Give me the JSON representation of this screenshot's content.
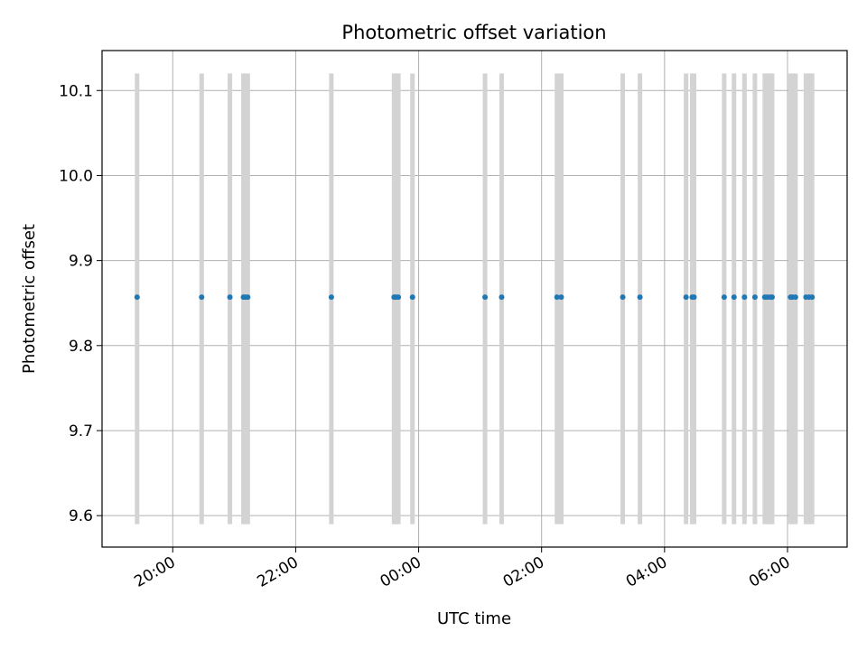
{
  "chart_data": {
    "type": "scatter",
    "title": "Photometric offset variation",
    "xlabel": "UTC time",
    "ylabel": "Photometric offset",
    "x_tick_labels": [
      "20:00",
      "22:00",
      "00:00",
      "02:00",
      "04:00",
      "06:00"
    ],
    "x_tick_hours": [
      20,
      22,
      24,
      26,
      28,
      30
    ],
    "y_ticks": [
      9.6,
      9.7,
      9.8,
      9.9,
      10.0,
      10.1
    ],
    "y_tick_labels": [
      "9.6",
      "9.7",
      "9.8",
      "9.9",
      "10.0",
      "10.1"
    ],
    "xlim_hours": [
      18.85,
      30.97
    ],
    "ylim": [
      9.563,
      10.147
    ],
    "grid": true,
    "colors": {
      "points": "#1f77b4",
      "error_bars": "#d3d3d3",
      "grid": "#b0b0b0"
    },
    "error_bar_range": [
      9.59,
      10.12
    ],
    "points_hours": [
      19.42,
      20.47,
      20.93,
      21.15,
      21.18,
      21.22,
      22.58,
      23.6,
      23.63,
      23.67,
      23.9,
      25.08,
      25.35,
      26.25,
      26.32,
      27.32,
      27.6,
      28.35,
      28.45,
      28.48,
      28.97,
      29.13,
      29.3,
      29.47,
      29.63,
      29.67,
      29.72,
      29.75,
      30.05,
      30.08,
      30.13,
      30.3,
      30.35,
      30.4
    ],
    "points_y": [
      9.857,
      9.857,
      9.857,
      9.857,
      9.857,
      9.857,
      9.857,
      9.857,
      9.857,
      9.857,
      9.857,
      9.857,
      9.857,
      9.857,
      9.857,
      9.857,
      9.857,
      9.857,
      9.857,
      9.857,
      9.857,
      9.857,
      9.857,
      9.857,
      9.857,
      9.857,
      9.857,
      9.857,
      9.857,
      9.857,
      9.857,
      9.857,
      9.857,
      9.857
    ]
  }
}
